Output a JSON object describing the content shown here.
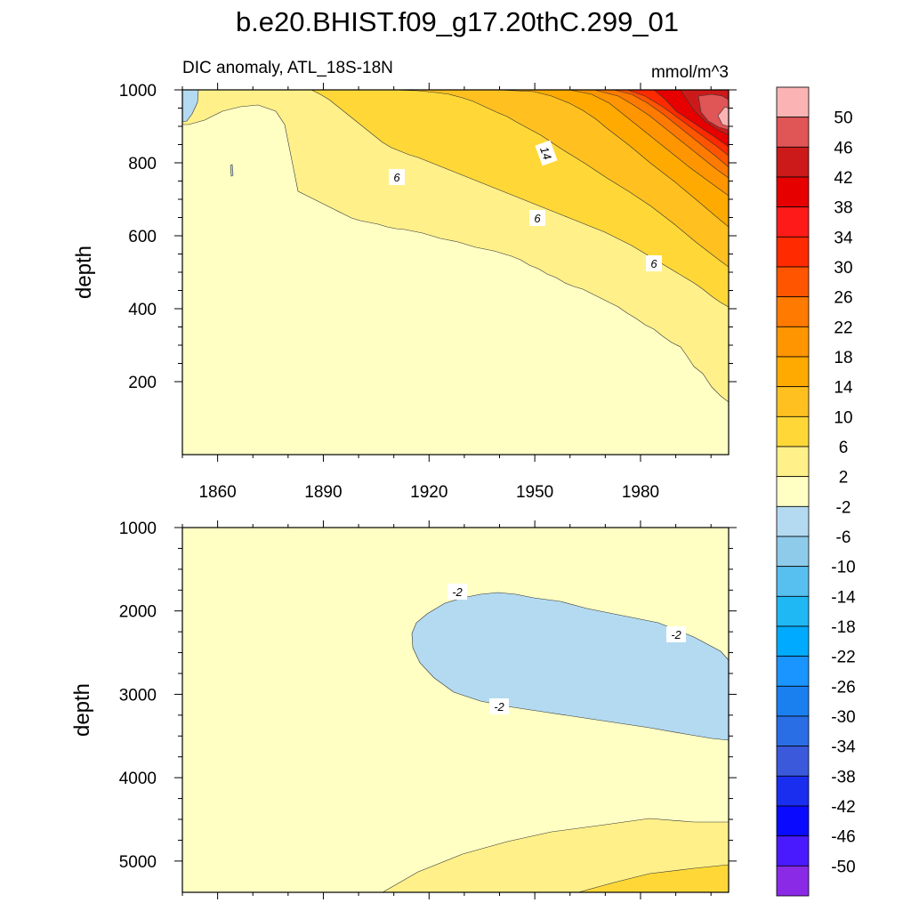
{
  "figure_title": "b.e20.BHIST.f09_g17.20thC.299_01",
  "chart_data": [
    {
      "type": "heatmap",
      "subtitle_left": "DIC anomaly, ATL_18S-18N",
      "subtitle_right": "mmol/m^3",
      "xlabel": "",
      "ylabel": "depth",
      "xlim": [
        1850,
        2005
      ],
      "ylim": [
        1000,
        0
      ],
      "xticks": [
        1860,
        1890,
        1920,
        1950,
        1980
      ],
      "xtick_labels": [
        "1860",
        "1890",
        "1920",
        "1950",
        "1980"
      ],
      "yticks": [
        200,
        400,
        600,
        800,
        1000
      ],
      "ytick_labels": [
        "200",
        "400",
        "600",
        "800",
        "1000"
      ],
      "contour_labels": [
        {
          "text": "6",
          "x": 1910,
          "y": 240
        },
        {
          "text": "14",
          "x": 1954,
          "y": 175
        },
        {
          "text": "6",
          "x": 1951,
          "y": 355
        },
        {
          "text": "6",
          "x": 1984,
          "y": 480
        }
      ]
    },
    {
      "type": "heatmap",
      "subtitle_left": "",
      "subtitle_right": "",
      "xlabel": "",
      "ylabel": "depth",
      "xlim": [
        1850,
        2005
      ],
      "ylim": [
        1000,
        5375
      ],
      "xticks": [
        1860,
        1890,
        1920,
        1950,
        1980
      ],
      "xtick_labels": [],
      "yticks": [
        1000,
        2000,
        3000,
        4000,
        5000
      ],
      "ytick_labels": [
        "1000",
        "2000",
        "3000",
        "4000",
        "5000"
      ],
      "contour_labels": [
        {
          "text": "-2",
          "x": 1927,
          "y": 1820
        },
        {
          "text": "-2",
          "x": 1990,
          "y": 2290
        },
        {
          "text": "-2",
          "x": 1941,
          "y": 3150
        }
      ]
    }
  ],
  "colorbar": {
    "levels": [
      "50",
      "46",
      "42",
      "38",
      "34",
      "30",
      "26",
      "22",
      "18",
      "14",
      "10",
      "6",
      "2",
      "-2",
      "-6",
      "-10",
      "-14",
      "-18",
      "-22",
      "-26",
      "-30",
      "-34",
      "-38",
      "-42",
      "-46",
      "-50"
    ],
    "colors": [
      "#fbb3b3",
      "#e05555",
      "#cc1a1a",
      "#e60000",
      "#ff1a1a",
      "#ff2a00",
      "#ff5500",
      "#ff7a00",
      "#ff9500",
      "#ffaa00",
      "#ffc020",
      "#ffd838",
      "#fff08a",
      "#ffffc4",
      "#b3daf0",
      "#8ecbea",
      "#58c0f0",
      "#1fb8f5",
      "#00aaff",
      "#1a94ff",
      "#1a80f0",
      "#2a6ee6",
      "#3a5adb",
      "#1a2ef0",
      "#0a0aff",
      "#4a1aff",
      "#8a2ae6"
    ]
  }
}
